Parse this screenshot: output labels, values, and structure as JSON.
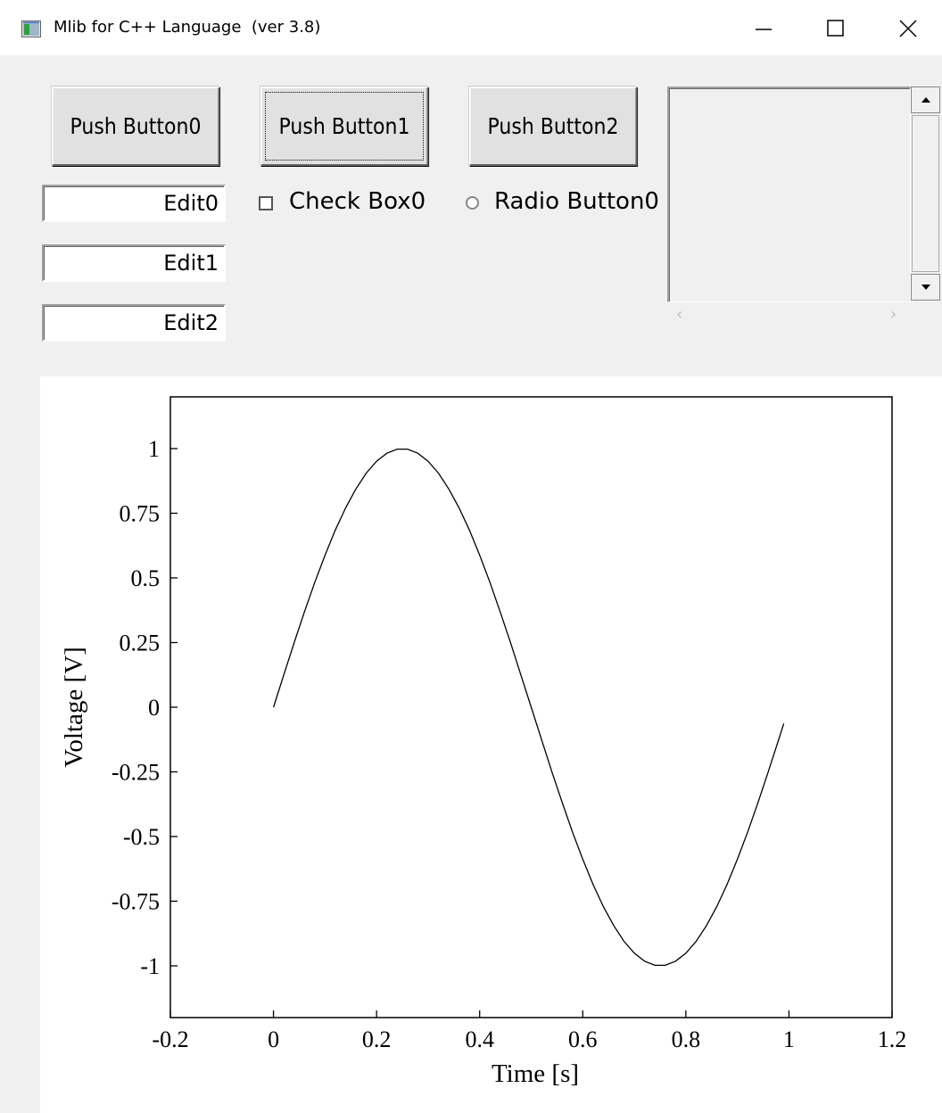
{
  "window": {
    "title": "Mlib for C++ Language  (ver 3.8)",
    "icon": "app-window-icon",
    "controls": [
      "minimize-icon",
      "maximize-icon",
      "close-icon"
    ]
  },
  "buttons": [
    {
      "label": "Push Button0",
      "focused": false
    },
    {
      "label": "Push Button1",
      "focused": true
    },
    {
      "label": "Push Button2",
      "focused": false
    }
  ],
  "edits": [
    {
      "value": "Edit0"
    },
    {
      "value": "Edit1"
    },
    {
      "value": "Edit2"
    }
  ],
  "checkbox": {
    "label": "Check Box0",
    "checked": false
  },
  "radio": {
    "label": "Radio Button0",
    "selected": false
  },
  "listbox": {
    "items": []
  },
  "chart_data": {
    "type": "line",
    "title": "",
    "xlabel": "Time [s]",
    "ylabel": "Voltage [V]",
    "xlim": [
      -0.2,
      1.2
    ],
    "ylim": [
      -1.2,
      1.2
    ],
    "xticks": [
      "-0.2",
      "0",
      "0.2",
      "0.4",
      "0.6",
      "0.8",
      "1",
      "1.2"
    ],
    "yticks": [
      "1",
      "0.75",
      "0.5",
      "0.25",
      "0",
      "-0.25",
      "-0.5",
      "-0.75",
      "-1"
    ],
    "xtick_values": [
      -0.2,
      0,
      0.2,
      0.4,
      0.6,
      0.8,
      1.0,
      1.2
    ],
    "ytick_values": [
      1,
      0.75,
      0.5,
      0.25,
      0,
      -0.25,
      -0.5,
      -0.75,
      -1
    ],
    "grid": false,
    "series": [
      {
        "color": "#000000",
        "x": [
          0,
          0.02,
          0.04,
          0.06,
          0.08,
          0.1,
          0.12,
          0.14,
          0.16,
          0.18,
          0.2,
          0.22,
          0.24,
          0.26,
          0.28,
          0.3,
          0.32,
          0.34,
          0.36,
          0.38,
          0.4,
          0.42,
          0.44,
          0.46,
          0.48,
          0.5,
          0.52,
          0.54,
          0.56,
          0.58,
          0.6,
          0.62,
          0.64,
          0.66,
          0.68,
          0.7,
          0.72,
          0.74,
          0.76,
          0.78,
          0.8,
          0.82,
          0.84,
          0.86,
          0.88,
          0.9,
          0.92,
          0.94,
          0.96,
          0.98,
          0.99
        ],
        "y": [
          0,
          0.125,
          0.249,
          0.368,
          0.482,
          0.588,
          0.685,
          0.771,
          0.844,
          0.905,
          0.951,
          0.982,
          0.998,
          0.998,
          0.982,
          0.951,
          0.905,
          0.844,
          0.771,
          0.685,
          0.588,
          0.482,
          0.368,
          0.249,
          0.125,
          0,
          -0.125,
          -0.249,
          -0.368,
          -0.482,
          -0.588,
          -0.685,
          -0.771,
          -0.844,
          -0.905,
          -0.951,
          -0.982,
          -0.998,
          -0.998,
          -0.982,
          -0.951,
          -0.905,
          -0.844,
          -0.771,
          -0.685,
          -0.588,
          -0.482,
          -0.368,
          -0.249,
          -0.125,
          -0.063
        ]
      }
    ]
  }
}
